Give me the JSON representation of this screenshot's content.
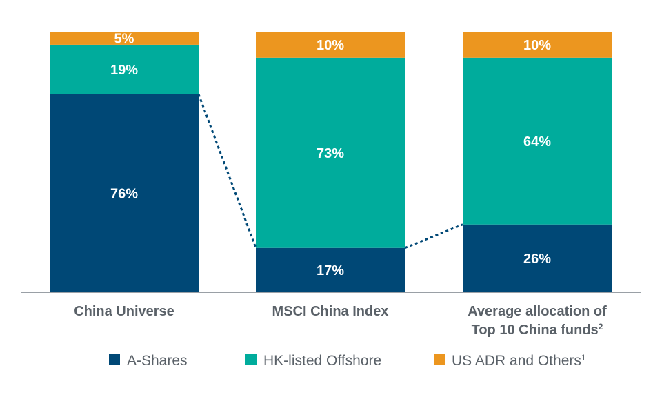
{
  "chart_data": {
    "type": "bar",
    "stacked": true,
    "categories": [
      {
        "lines": [
          "China Universe"
        ],
        "sup": ""
      },
      {
        "lines": [
          "MSCI China Index"
        ],
        "sup": ""
      },
      {
        "lines": [
          "Average allocation of",
          "Top 10 China funds"
        ],
        "sup": "2"
      }
    ],
    "series": [
      {
        "name": "A-Shares",
        "sup": "",
        "color": "#004876",
        "values": [
          76,
          17,
          26
        ],
        "labels": [
          "76%",
          "17%",
          "26%"
        ]
      },
      {
        "name": "HK-listed Offshore",
        "sup": "",
        "color": "#00AC9C",
        "values": [
          19,
          73,
          64
        ],
        "labels": [
          "19%",
          "73%",
          "64%"
        ]
      },
      {
        "name": "US ADR and Others",
        "sup": "1",
        "color": "#EC961F",
        "values": [
          5,
          10,
          10
        ],
        "labels": [
          "5%",
          "10%",
          "10%"
        ]
      }
    ],
    "ylim": [
      0,
      100
    ],
    "grid": false,
    "legend": "bottom",
    "connector": "dotted line linking top of A-Shares segments",
    "connector_color": "#004876"
  }
}
